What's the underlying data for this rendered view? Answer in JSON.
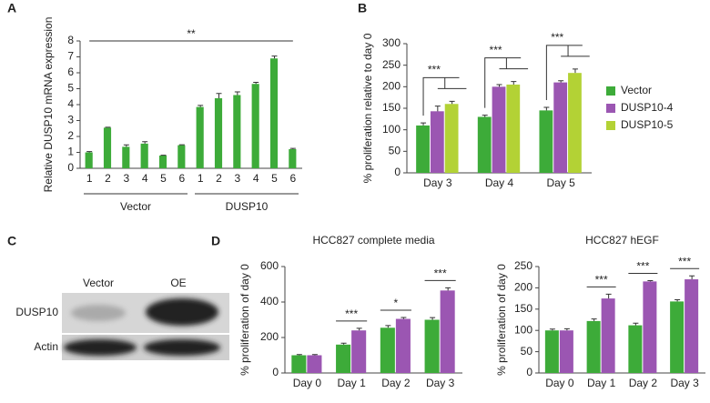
{
  "chart_data": [
    {
      "type": "bar",
      "panel_label": "A",
      "y_label": "Relative DUSP10 mRNA expression",
      "categories": [
        "1",
        "2",
        "3",
        "4",
        "5",
        "6",
        "1",
        "2",
        "3",
        "4",
        "5",
        "6"
      ],
      "groups": [
        "Vector",
        "DUSP10"
      ],
      "values": [
        1.0,
        2.55,
        1.35,
        1.55,
        0.8,
        1.45,
        3.85,
        4.4,
        4.6,
        5.3,
        6.9,
        1.2
      ],
      "errors": [
        0.05,
        0.03,
        0.12,
        0.12,
        0.02,
        0.03,
        0.1,
        0.3,
        0.2,
        0.1,
        0.15,
        0.05
      ],
      "color": "#3dab39",
      "ylim": [
        0,
        8
      ],
      "yticks": [
        0,
        1,
        2,
        3,
        4,
        5,
        6,
        7,
        8
      ],
      "annotation": "**"
    },
    {
      "type": "bar",
      "panel_label": "B",
      "y_label": "% proliferation relative to day 0",
      "categories": [
        "Day 3",
        "Day 4",
        "Day 5"
      ],
      "series": [
        {
          "name": "Vector",
          "color": "#3dab39",
          "values": [
            110,
            130,
            145
          ],
          "errors": [
            6,
            4,
            7
          ]
        },
        {
          "name": "DUSP10-4",
          "color": "#9b56b2",
          "values": [
            143,
            200,
            210
          ],
          "errors": [
            12,
            5,
            4
          ]
        },
        {
          "name": "DUSP10-5",
          "color": "#b3d235",
          "values": [
            160,
            205,
            232
          ],
          "errors": [
            6,
            7,
            9
          ]
        }
      ],
      "ylim": [
        0,
        300
      ],
      "yticks": [
        0,
        50,
        100,
        150,
        200,
        250,
        300
      ],
      "legend": "right",
      "annotations": [
        "***",
        "***",
        "***"
      ]
    },
    {
      "type": "bar",
      "panel_label": "D",
      "title": "HCC827 complete media",
      "y_label": "% proliferation of day 0",
      "categories": [
        "Day 0",
        "Day 1",
        "Day 2",
        "Day 3"
      ],
      "series": [
        {
          "color": "#3dab39",
          "values": [
            100,
            160,
            255,
            300
          ],
          "errors": [
            4,
            8,
            12,
            12
          ]
        },
        {
          "color": "#9b56b2",
          "values": [
            100,
            240,
            305,
            465
          ],
          "errors": [
            4,
            12,
            8,
            15
          ]
        }
      ],
      "ylim": [
        0,
        600
      ],
      "yticks": [
        0,
        200,
        400,
        600
      ],
      "annotations": [
        null,
        "***",
        "*",
        "***"
      ]
    },
    {
      "type": "bar",
      "title": "HCC827 hEGF",
      "y_label": "% proliferation of day 0",
      "categories": [
        "Day 0",
        "Day 1",
        "Day 2",
        "Day 3"
      ],
      "series": [
        {
          "color": "#3dab39",
          "values": [
            100,
            122,
            112,
            168
          ],
          "errors": [
            3,
            5,
            5,
            4
          ]
        },
        {
          "color": "#9b56b2",
          "values": [
            100,
            175,
            215,
            220
          ],
          "errors": [
            4,
            10,
            2,
            8
          ]
        }
      ],
      "ylim": [
        0,
        250
      ],
      "yticks": [
        0,
        50,
        100,
        150,
        200,
        250
      ],
      "annotations": [
        null,
        "***",
        "***",
        "***"
      ]
    }
  ],
  "blot": {
    "panel_label": "C",
    "columns": [
      "Vector",
      "OE"
    ],
    "rows": [
      "DUSP10",
      "Actin"
    ]
  }
}
